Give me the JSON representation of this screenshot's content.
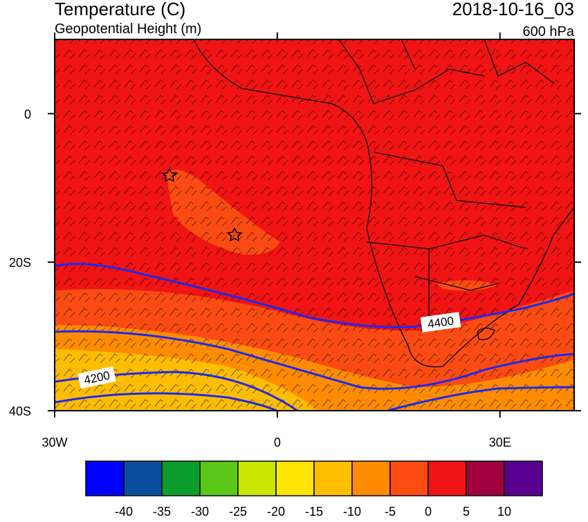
{
  "header": {
    "title": "Temperature (C)",
    "subtitle": "Geopotential Height (m)",
    "valid_time": "2018-10-16_03",
    "level": "600 hPa"
  },
  "map": {
    "xlim": [
      -30,
      40
    ],
    "ylim": [
      -40,
      10
    ],
    "xticks": [
      {
        "value": -30,
        "label": "30W"
      },
      0,
      {
        "value": 30,
        "label": "30E"
      }
    ],
    "yticks": [
      0,
      {
        "value": -20,
        "label": "20S"
      },
      {
        "value": -40,
        "label": "40S"
      }
    ],
    "contour_labels": [
      "4400",
      "4200"
    ]
  },
  "colorbar": {
    "levels": [
      -40,
      -35,
      -30,
      -25,
      -20,
      -15,
      -10,
      -5,
      0,
      5,
      10
    ],
    "colors": [
      "#0000ff",
      "#0a4f9e",
      "#0c9e2c",
      "#5cc81a",
      "#c8e800",
      "#ffe500",
      "#ffbd00",
      "#ff8c00",
      "#ff4c10",
      "#f01414",
      "#a00040",
      "#5a0090"
    ]
  }
}
